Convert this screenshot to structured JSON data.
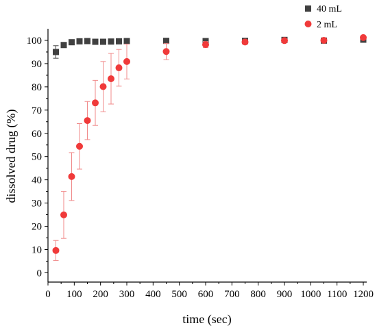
{
  "chart_data": {
    "type": "scatter",
    "xlabel": "time (sec)",
    "ylabel": "dissolved drug (%)",
    "xlim": [
      0,
      1200
    ],
    "ylim": [
      -4,
      105
    ],
    "xticks": [
      0,
      100,
      200,
      300,
      400,
      500,
      600,
      700,
      800,
      900,
      1000,
      1100,
      1200
    ],
    "yticks": [
      0,
      10,
      20,
      30,
      40,
      50,
      60,
      70,
      80,
      90,
      100
    ],
    "grid": false,
    "legend_position": "top-right",
    "series": [
      {
        "name": "40 mL",
        "marker": "square",
        "color": "#404040",
        "errorbar_color": "#404040",
        "x": [
          30,
          60,
          90,
          120,
          150,
          180,
          210,
          240,
          270,
          300,
          450,
          600,
          750,
          900,
          1050,
          1200
        ],
        "y": [
          95,
          98,
          99.2,
          99.6,
          99.7,
          99.4,
          99.4,
          99.5,
          99.6,
          99.7,
          99.8,
          99.7,
          99.8,
          100.2,
          99.9,
          100.3
        ],
        "yerr": [
          2.7,
          0.8,
          0.5,
          0.4,
          0.3,
          0.3,
          0.3,
          0.3,
          0.3,
          0.3,
          0.3,
          0.3,
          0.3,
          0.3,
          0.3,
          0.3
        ]
      },
      {
        "name": "2 mL",
        "marker": "circle",
        "color": "#f03a3a",
        "errorbar_color": "#f08a8a",
        "x": [
          30,
          60,
          90,
          120,
          150,
          180,
          210,
          240,
          270,
          300,
          450,
          600,
          750,
          900,
          1050,
          1200
        ],
        "y": [
          9.6,
          24.9,
          41.4,
          54.4,
          65.5,
          73.1,
          80.1,
          83.5,
          88.2,
          90.9,
          95.2,
          98.2,
          99.3,
          99.9,
          100,
          101.2
        ],
        "yerr": [
          4.3,
          10.1,
          10.3,
          9.8,
          8.2,
          9.7,
          10.8,
          10.9,
          7.9,
          7.5,
          3.5,
          1.3,
          1,
          0.7,
          0.5,
          0.5
        ]
      }
    ]
  }
}
